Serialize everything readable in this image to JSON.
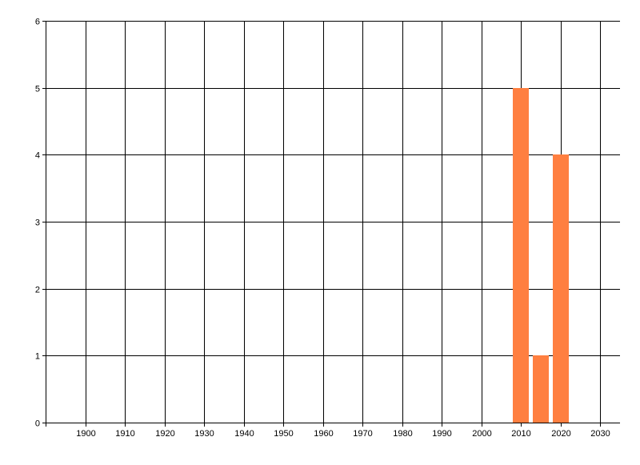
{
  "chart_data": {
    "type": "bar",
    "title": "",
    "xlabel": "",
    "ylabel": "",
    "xlim": [
      1890,
      2035
    ],
    "ylim": [
      0,
      6
    ],
    "x_ticks": [
      1900,
      1910,
      1920,
      1930,
      1940,
      1950,
      1960,
      1970,
      1980,
      1990,
      2000,
      2010,
      2020,
      2030
    ],
    "y_ticks": [
      0,
      1,
      2,
      3,
      4,
      5,
      6
    ],
    "grid": true,
    "bar_width": 4,
    "bar_color": "#FF7F40",
    "series": [
      {
        "x": [
          2010,
          2015,
          2020
        ],
        "values": [
          5,
          1,
          4
        ]
      }
    ]
  }
}
